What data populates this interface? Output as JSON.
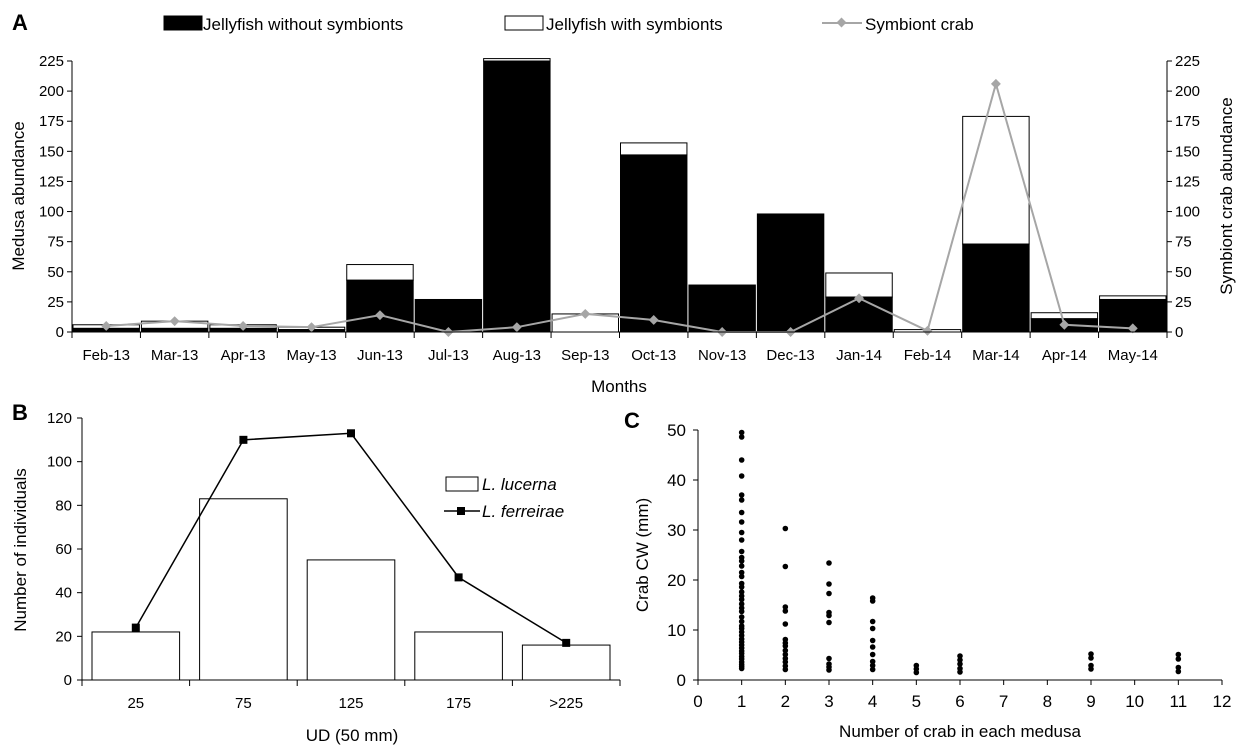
{
  "chart_data": [
    {
      "panel_label": "A",
      "type": "bar",
      "categories": [
        "Feb-13",
        "Mar-13",
        "Apr-13",
        "May-13",
        "Jun-13",
        "Jul-13",
        "Aug-13",
        "Sep-13",
        "Oct-13",
        "Nov-13",
        "Dec-13",
        "Jan-14",
        "Feb-14",
        "Mar-14",
        "Apr-14",
        "May-14"
      ],
      "stacked": true,
      "series": [
        {
          "name": "Jellyfish without symbionts",
          "kind": "bar",
          "axis": "left",
          "color": "#000000",
          "values": [
            3,
            3,
            3,
            2,
            43,
            27,
            225,
            0,
            147,
            39,
            98,
            29,
            0,
            73,
            11,
            27
          ]
        },
        {
          "name": "Jellyfish with symbionts",
          "kind": "bar",
          "axis": "left",
          "color": "#ffffff",
          "values": [
            3,
            6,
            3,
            2,
            13,
            0,
            2,
            15,
            10,
            0,
            0,
            20,
            2,
            106,
            5,
            3
          ]
        },
        {
          "name": "Symbiont crab",
          "kind": "line",
          "axis": "right",
          "color": "#a6a6a6",
          "values": [
            5,
            9,
            5,
            4,
            14,
            0,
            4,
            15,
            10,
            0,
            0,
            28,
            1,
            206,
            6,
            3
          ]
        }
      ],
      "xlabel": "Months",
      "ylabel": "Medusa abundance",
      "y2label": "Symbiont crab abundance",
      "ylim": [
        0,
        225
      ],
      "y2lim": [
        0,
        225
      ],
      "yticks": [
        "0",
        "25",
        "50",
        "75",
        "100",
        "125",
        "150",
        "175",
        "200",
        "225"
      ],
      "legend_position": "top"
    },
    {
      "panel_label": "B",
      "type": "bar",
      "categories": [
        "25",
        "75",
        "125",
        "175",
        ">225"
      ],
      "series": [
        {
          "name": "L. lucerna",
          "kind": "bar",
          "color": "#ffffff",
          "values": [
            22,
            83,
            55,
            22,
            16
          ]
        },
        {
          "name": "L. ferreirae",
          "kind": "line",
          "color": "#000000",
          "values": [
            24,
            110,
            113,
            47,
            17
          ]
        }
      ],
      "xlabel": "UD (50 mm)",
      "ylabel": "Number of individuals",
      "ylim": [
        0,
        120
      ],
      "yticks": [
        "0",
        "20",
        "40",
        "60",
        "80",
        "100",
        "120"
      ],
      "legend_position": "right"
    },
    {
      "panel_label": "C",
      "type": "scatter",
      "series": [
        {
          "x": 1,
          "values": [
            49.5,
            48.6,
            44,
            40.8,
            37,
            36,
            33.5,
            31.6,
            29.5,
            28,
            25.7,
            24.5,
            23.8,
            22.8,
            21.5,
            20.7,
            19.3,
            18.6,
            17.6,
            16.8,
            16.1,
            15.2,
            14.4,
            13.7,
            12.6,
            11.7,
            10.8,
            10.3,
            9.6,
            8.9,
            8.2,
            7.6,
            7,
            6.4,
            5.8,
            5.3,
            4.7,
            4.2,
            3.6,
            3.1,
            2.7,
            2.3
          ]
        },
        {
          "x": 2,
          "values": [
            30.3,
            22.7,
            14.6,
            13.8,
            11.2,
            8.1,
            7.4,
            6.8,
            5.9,
            5.1,
            4.3,
            3.6,
            2.8,
            2.1
          ]
        },
        {
          "x": 3,
          "values": [
            23.4,
            19.2,
            17.3,
            13.5,
            12.9,
            11.5,
            4.3,
            3.2,
            2.6,
            2
          ]
        },
        {
          "x": 4,
          "values": [
            16.4,
            15.8,
            11.7,
            10.3,
            7.9,
            6.6,
            5.1,
            3.7,
            2.9,
            2.1
          ]
        },
        {
          "x": 5,
          "values": [
            2.9,
            2.2,
            1.5
          ]
        },
        {
          "x": 6,
          "values": [
            4.8,
            4,
            3.2,
            2.3,
            1.6
          ]
        },
        {
          "x": 9,
          "values": [
            5.2,
            4.4,
            2.9,
            2.2
          ]
        },
        {
          "x": 11,
          "values": [
            5.1,
            4.2,
            2.5,
            1.7
          ]
        }
      ],
      "xlabel": "Number of crab in each medusa",
      "ylabel": "Crab CW (mm)",
      "xlim": [
        0,
        12
      ],
      "ylim": [
        0,
        50
      ],
      "xticks": [
        "0",
        "1",
        "2",
        "3",
        "4",
        "5",
        "6",
        "7",
        "8",
        "9",
        "10",
        "11",
        "12"
      ],
      "yticks": [
        "0",
        "10",
        "20",
        "30",
        "40",
        "50"
      ]
    }
  ]
}
